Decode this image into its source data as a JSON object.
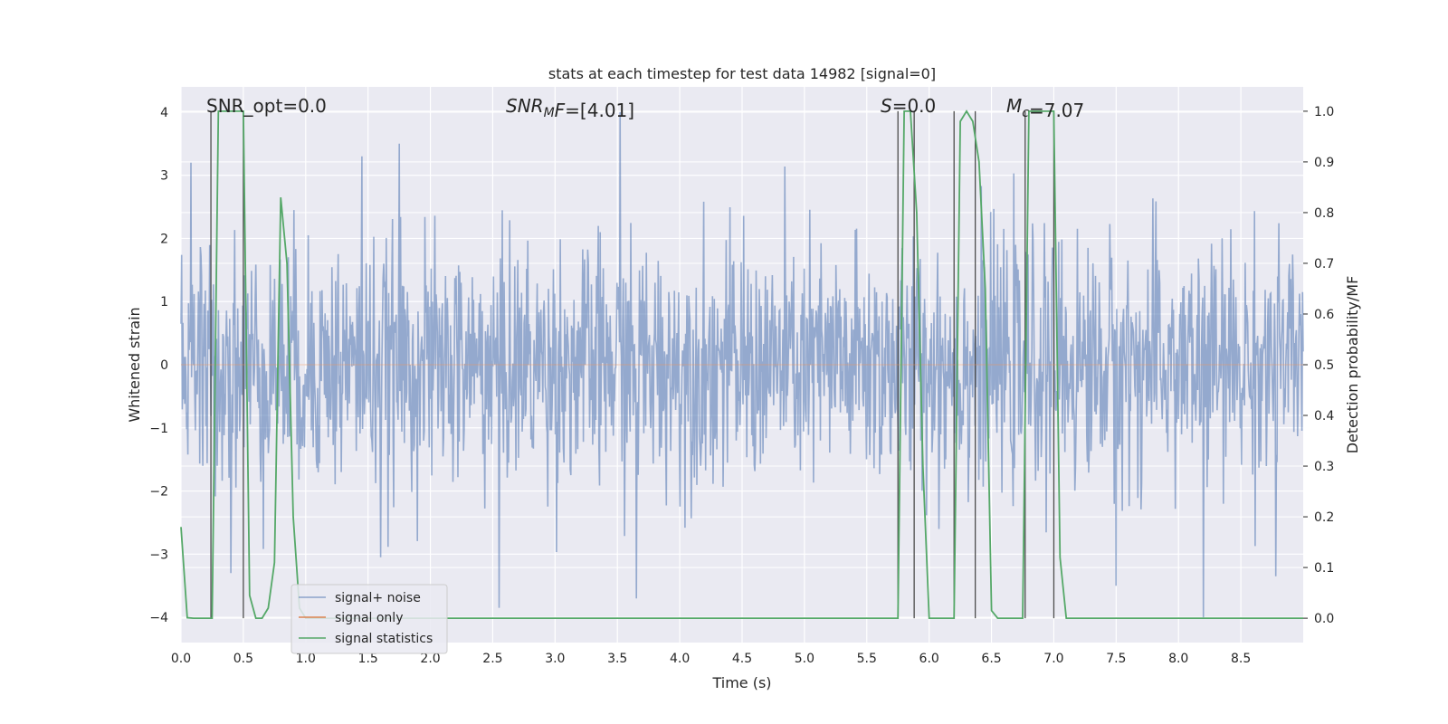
{
  "chart_data": {
    "type": "line",
    "title": "stats at each timestep for test data 14982 [signal=0]",
    "xlabel": "Time (s)",
    "ylabel": "Whitened strain",
    "ylabel_right": "Detection probability/MF",
    "xlim": [
      0.0,
      9.0
    ],
    "ylim": [
      -4.4,
      4.4
    ],
    "ylim_right": [
      -0.048,
      1.048
    ],
    "x_ticks": [
      "0.0",
      "0.5",
      "1.0",
      "1.5",
      "2.0",
      "2.5",
      "3.0",
      "3.5",
      "4.0",
      "4.5",
      "5.0",
      "5.5",
      "6.0",
      "6.5",
      "7.0",
      "7.5",
      "8.0",
      "8.5"
    ],
    "y_ticks": [
      "−4",
      "−3",
      "−2",
      "−1",
      "0",
      "1",
      "2",
      "3",
      "4"
    ],
    "y_ticks_right": [
      "0.0",
      "0.1",
      "0.2",
      "0.3",
      "0.4",
      "0.5",
      "0.6",
      "0.7",
      "0.8",
      "0.9",
      "1.0"
    ],
    "grid": true,
    "legend_position": "lower-left",
    "colors": {
      "background": "#eaeaf2",
      "grid": "#ffffff",
      "noise": "#4c72b0",
      "signal": "#dd8452",
      "statistics": "#55a868",
      "markers": "#4d4d4d"
    },
    "annotations": [
      {
        "parts": [
          {
            "t": "SNR_opt=0.0",
            "i": false
          }
        ]
      },
      {
        "parts": [
          {
            "t": "SNR",
            "i": true
          },
          {
            "t": "M",
            "i": true,
            "sub": true
          },
          {
            "t": "F",
            "i": true
          },
          {
            "t": "=[4.01]",
            "i": false
          }
        ]
      },
      {
        "parts": [
          {
            "t": "S",
            "i": true
          },
          {
            "t": "=0.0",
            "i": false
          }
        ]
      },
      {
        "parts": [
          {
            "t": "M",
            "i": true
          },
          {
            "t": "c",
            "i": true,
            "sub": true
          },
          {
            "t": "=7.07",
            "i": false
          }
        ]
      }
    ],
    "series": [
      {
        "name": "signal+ noise",
        "color": "#4c72b0",
        "noise_sigma": 1.0,
        "noise_clip": [
          -4.0,
          4.0
        ],
        "samples": 1800,
        "peaks": [
          {
            "x": 0.08,
            "y": 3.2
          },
          {
            "x": 1.45,
            "y": 3.3
          },
          {
            "x": 1.75,
            "y": 3.5
          },
          {
            "x": 2.55,
            "y": -3.85
          },
          {
            "x": 3.52,
            "y": 4.0
          },
          {
            "x": 3.65,
            "y": -3.7
          },
          {
            "x": 1.6,
            "y": -3.05
          },
          {
            "x": 8.2,
            "y": 3.2
          },
          {
            "x": 8.2,
            "y": -4.0
          },
          {
            "x": 8.78,
            "y": -3.35
          },
          {
            "x": 7.5,
            "y": -3.5
          },
          {
            "x": 0.4,
            "y": -3.3
          }
        ]
      },
      {
        "name": "signal only",
        "color": "#dd8452",
        "x": [
          0.0,
          9.0
        ],
        "y": [
          0.0,
          0.0
        ]
      },
      {
        "name": "signal statistics",
        "color": "#55a868",
        "axis": "right",
        "x": [
          0.0,
          0.05,
          0.1,
          0.15,
          0.2,
          0.25,
          0.3,
          0.35,
          0.4,
          0.45,
          0.5,
          0.55,
          0.6,
          0.65,
          0.7,
          0.75,
          0.8,
          0.85,
          0.9,
          0.95,
          1.0,
          5.75,
          5.8,
          5.85,
          5.9,
          5.95,
          6.0,
          6.05,
          6.1,
          6.15,
          6.2,
          6.25,
          6.3,
          6.35,
          6.4,
          6.45,
          6.5,
          6.55,
          6.6,
          6.65,
          6.7,
          6.75,
          6.8,
          6.85,
          6.9,
          6.95,
          7.0,
          7.05,
          7.1,
          7.15,
          9.0
        ],
        "y": [
          0.18,
          0.001,
          0.0,
          0.0,
          0.0,
          0.0,
          1.0,
          1.0,
          1.0,
          1.0,
          1.0,
          0.045,
          0.0,
          0.0,
          0.02,
          0.11,
          0.83,
          0.7,
          0.2,
          0.02,
          0.0,
          0.0,
          1.0,
          1.0,
          0.8,
          0.3,
          0.0,
          0.0,
          0.0,
          0.0,
          0.0,
          0.98,
          1.0,
          0.98,
          0.9,
          0.65,
          0.015,
          0.0,
          0.0,
          0.0,
          0.0,
          0.0,
          1.0,
          1.0,
          1.0,
          1.0,
          1.0,
          0.12,
          0.0,
          0.0,
          0.0
        ]
      }
    ],
    "marker_lines": [
      0.24,
      0.5,
      5.75,
      5.88,
      6.2,
      6.37,
      6.77,
      7.0
    ]
  }
}
